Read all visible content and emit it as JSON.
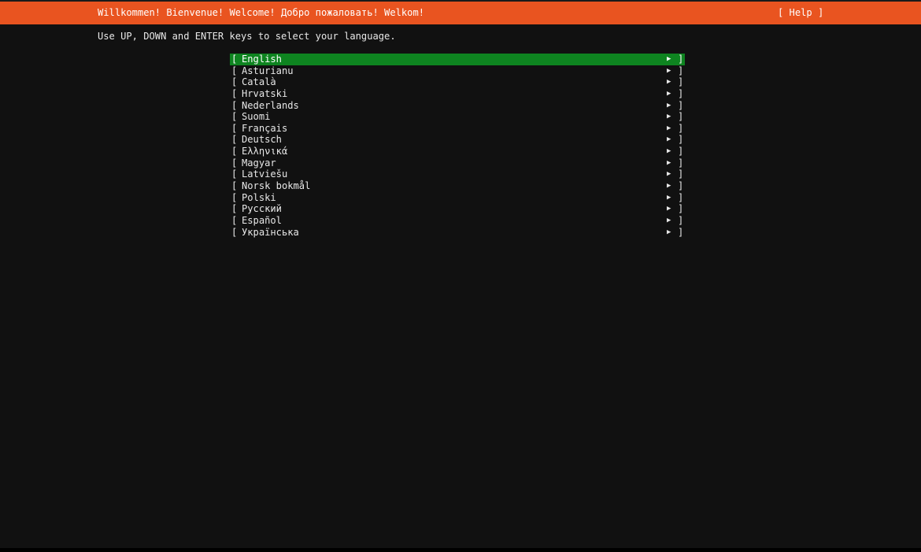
{
  "header": {
    "title": "Willkommen! Bienvenue! Welcome! Добро пожаловать! Welkom!",
    "help_label": "[ Help ]",
    "color": "#E95420"
  },
  "instruction": "Use UP, DOWN and ENTER keys to select your language.",
  "languages": {
    "selected_color": "#0E8420",
    "selected_index": 0,
    "items": [
      "English",
      "Asturianu",
      "Català",
      "Hrvatski",
      "Nederlands",
      "Suomi",
      "Français",
      "Deutsch",
      "Ελληνικά",
      "Magyar",
      "Latviešu",
      "Norsk bokmål",
      "Polski",
      "Русский",
      "Español",
      "Українська"
    ],
    "left_bracket": "[",
    "right_bracket": "]",
    "arrow": "▶"
  }
}
